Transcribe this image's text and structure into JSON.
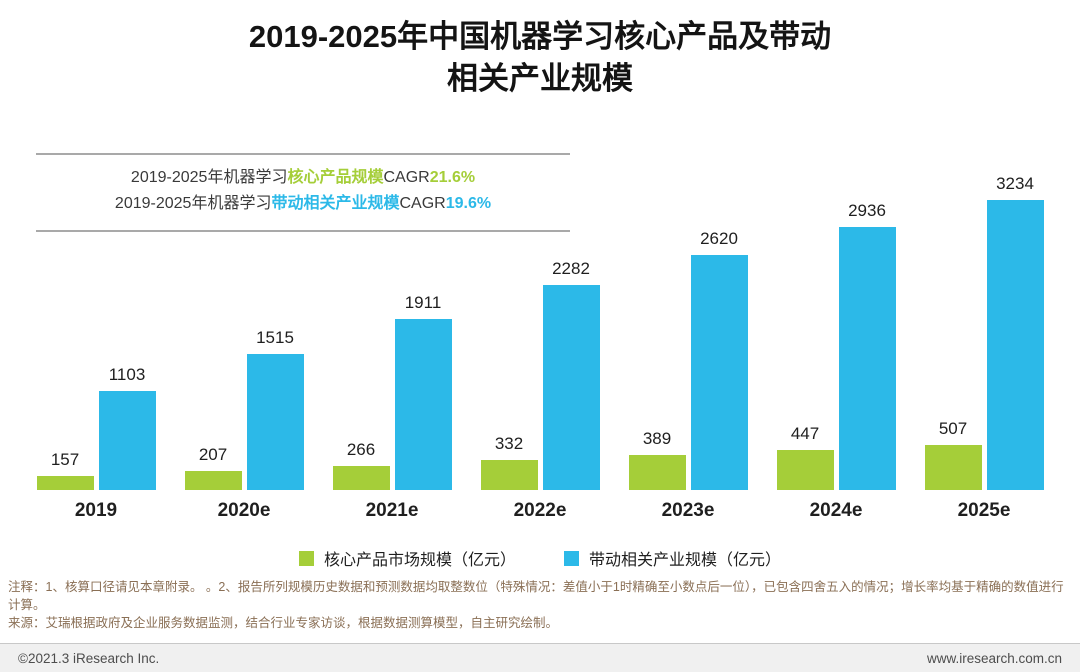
{
  "title": {
    "line1": "2019-2025年中国机器学习核心产品及带动",
    "line2": "相关产业规模"
  },
  "cagr_box": {
    "line1": {
      "prefix": "2019-2025年机器学习",
      "highlight": "核心产品规模",
      "cagr_label": "CAGR",
      "value": "21.6%"
    },
    "line2": {
      "prefix": "2019-2025年机器学习",
      "highlight": "带动相关产业规模",
      "cagr_label": "CAGR",
      "value": "19.6%"
    }
  },
  "chart_data": {
    "type": "bar",
    "categories": [
      "2019",
      "2020e",
      "2021e",
      "2022e",
      "2023e",
      "2024e",
      "2025e"
    ],
    "series": [
      {
        "name": "核心产品市场规模（亿元）",
        "color": "#a5ce39",
        "values": [
          157,
          207,
          266,
          332,
          389,
          447,
          507
        ]
      },
      {
        "name": "带动相关产业规模（亿元）",
        "color": "#2cb9e8",
        "values": [
          1103,
          1515,
          1911,
          2282,
          2620,
          2936,
          3234
        ]
      }
    ],
    "title": "2019-2025年中国机器学习核心产品及带动相关产业规模",
    "xlabel": "",
    "ylabel": "",
    "ylim": [
      0,
      3400
    ],
    "grid": false,
    "legend_position": "bottom",
    "value_labels": true
  },
  "notes": {
    "line1": "注释：1、核算口径请见本章附录。 。2、报告所列规模历史数据和预测数据均取整数位（特殊情况：差值小于1时精确至小数点后一位），已包含四舍五入的情况；增长率均基于精确的数值进行计算。",
    "line2": "来源：艾瑞根据政府及企业服务数据监测，结合行业专家访谈，根据数据测算模型，自主研究绘制。"
  },
  "footer": {
    "left": "©2021.3 iResearch Inc.",
    "right": "www.iresearch.com.cn"
  },
  "colors": {
    "green": "#a5ce39",
    "blue": "#2cb9e8",
    "note_text": "#8a6f55",
    "footer_bg": "#f0f0f0"
  }
}
